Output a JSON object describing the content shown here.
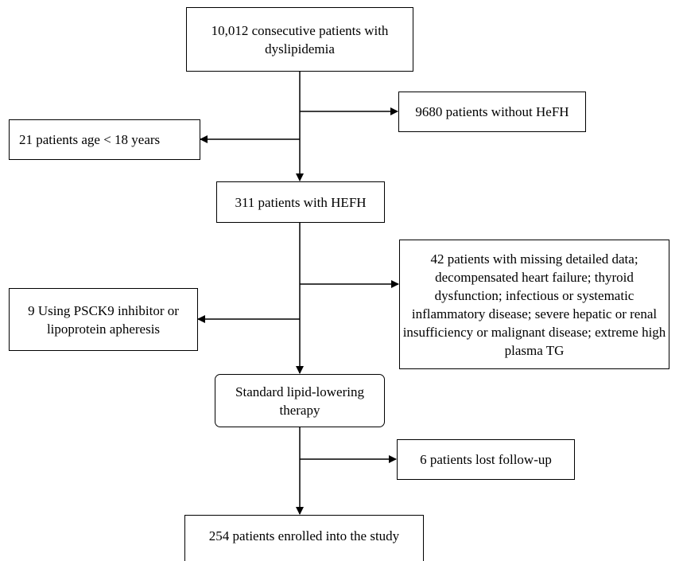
{
  "flowchart": {
    "start": "10,012 consecutive patients with dyslipidemia",
    "excluded_no_hefh": "9680 patients without HeFH",
    "excluded_age": "21 patients age < 18 years",
    "hefh": "311 patients with HEFH",
    "excluded_missing": "42 patients with missing detailed data; decompensated heart failure; thyroid dysfunction; infectious or systematic inflammatory disease; severe hepatic or renal insufficiency or malignant disease; extreme high plasma TG",
    "excluded_pcsk9": "9 Using PSCK9 inhibitor or lipoprotein apheresis",
    "therapy": "Standard lipid-lowering therapy",
    "lost_followup": "6 patients lost follow-up",
    "enrolled": "254 patients enrolled into the study"
  }
}
